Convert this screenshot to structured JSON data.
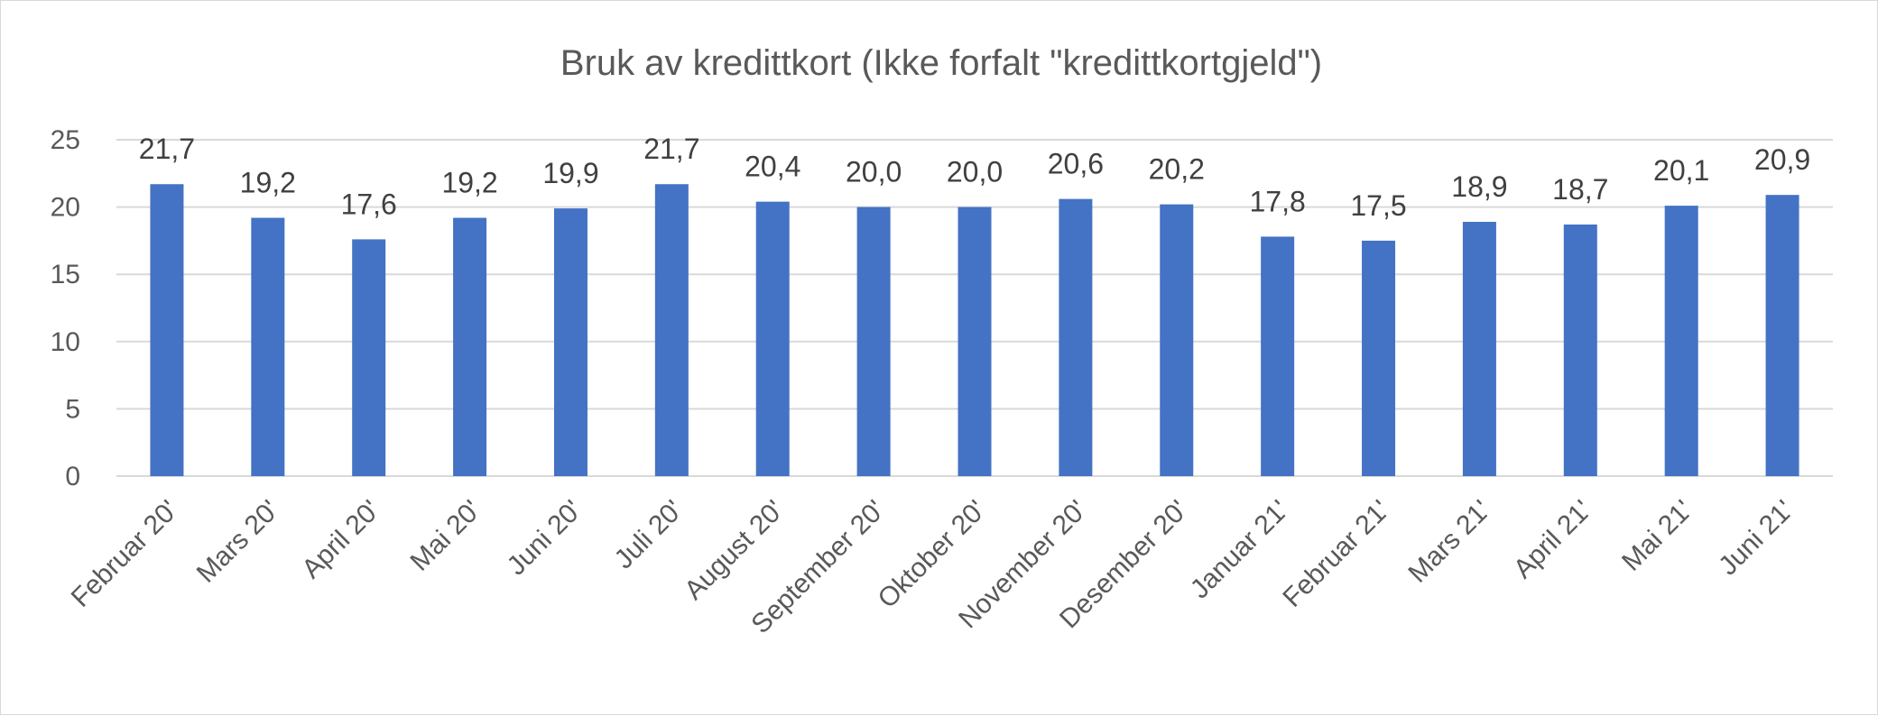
{
  "chart_data": {
    "type": "bar",
    "title": "Bruk av kredittkort (Ikke forfalt \"kredittkortgjeld\")",
    "xlabel": "",
    "ylabel": "",
    "categories": [
      "Februar 20'",
      "Mars 20'",
      "April 20'",
      "Mai 20'",
      "Juni 20'",
      "Juli 20'",
      "August 20'",
      "September 20'",
      "Oktober 20'",
      "November 20'",
      "Desember 20'",
      "Januar 21'",
      "Februar 21'",
      "Mars 21'",
      "April 21'",
      "Mai 21'",
      "Juni 21'"
    ],
    "values": [
      21.7,
      19.2,
      17.6,
      19.2,
      19.9,
      21.7,
      20.4,
      20.0,
      20.0,
      20.6,
      20.2,
      17.8,
      17.5,
      18.9,
      18.7,
      20.1,
      20.9
    ],
    "data_labels": [
      "21,7",
      "19,2",
      "17,6",
      "19,2",
      "19,9",
      "21,7",
      "20,4",
      "20,0",
      "20,0",
      "20,6",
      "20,2",
      "17,8",
      "17,5",
      "18,9",
      "18,7",
      "20,1",
      "20,9"
    ],
    "ylim": [
      0,
      25
    ],
    "yticks": [
      0,
      5,
      10,
      15,
      20,
      25
    ],
    "ytick_labels": [
      "0",
      "5",
      "10",
      "15",
      "20",
      "25"
    ],
    "grid": true,
    "legend": "none",
    "colors": {
      "bar": "#4472c4",
      "grid": "#d9d9d9",
      "axis_text": "#595959",
      "data_label_text": "#404040"
    }
  }
}
